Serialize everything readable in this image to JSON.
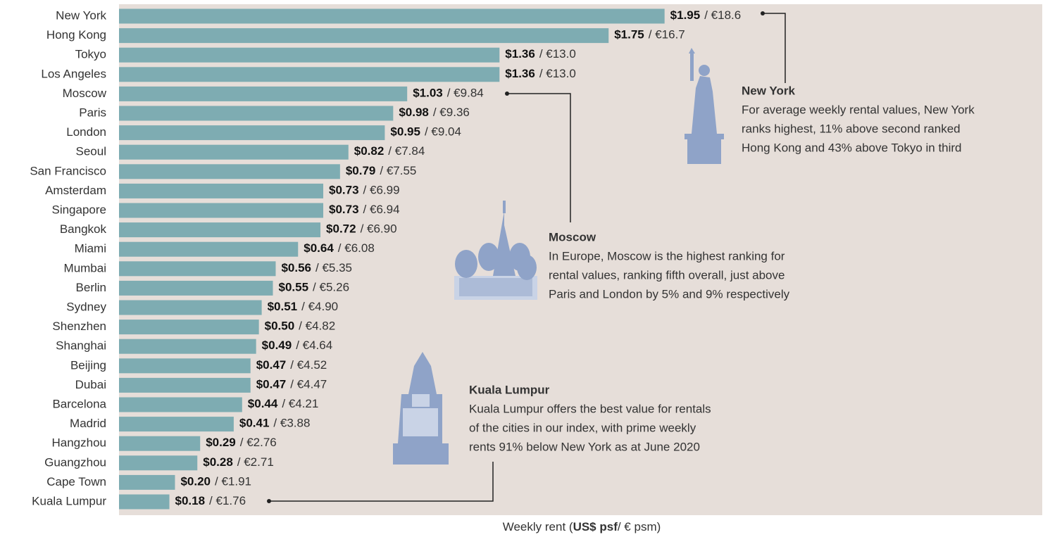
{
  "chart_data": {
    "type": "bar",
    "orientation": "horizontal",
    "categories": [
      "New York",
      "Hong Kong",
      "Tokyo",
      "Los Angeles",
      "Moscow",
      "Paris",
      "London",
      "Seoul",
      "San Francisco",
      "Amsterdam",
      "Singapore",
      "Bangkok",
      "Miami",
      "Mumbai",
      "Berlin",
      "Sydney",
      "Shenzhen",
      "Shanghai",
      "Beijing",
      "Dubai",
      "Barcelona",
      "Madrid",
      "Hangzhou",
      "Guangzhou",
      "Cape Town",
      "Kuala Lumpur"
    ],
    "values": [
      1.95,
      1.75,
      1.36,
      1.36,
      1.03,
      0.98,
      0.95,
      0.82,
      0.79,
      0.73,
      0.73,
      0.72,
      0.64,
      0.56,
      0.55,
      0.51,
      0.5,
      0.49,
      0.47,
      0.47,
      0.44,
      0.41,
      0.29,
      0.28,
      0.2,
      0.18
    ],
    "value_labels": [
      "$1.95",
      "$1.75",
      "$1.36",
      "$1.36",
      "$1.03",
      "$0.98",
      "$0.95",
      "$0.82",
      "$0.79",
      "$0.73",
      "$0.73",
      "$0.72",
      "$0.64",
      "$0.56",
      "$0.55",
      "$0.51",
      "$0.50",
      "$0.49",
      "$0.47",
      "$0.47",
      "$0.44",
      "$0.41",
      "$0.29",
      "$0.28",
      "$0.20",
      "$0.18"
    ],
    "secondary_values": [
      18.6,
      16.7,
      13.0,
      13.0,
      9.84,
      9.36,
      9.04,
      7.84,
      7.55,
      6.99,
      6.94,
      6.9,
      6.08,
      5.35,
      5.26,
      4.9,
      4.82,
      4.64,
      4.52,
      4.47,
      4.21,
      3.88,
      2.76,
      2.71,
      1.91,
      1.76
    ],
    "secondary_value_labels": [
      "/ €18.6",
      "/ €16.7",
      "/ €13.0",
      "/ €13.0",
      "/ €9.84",
      "/ €9.36",
      "/ €9.04",
      "/ €7.84",
      "/ €7.55",
      "/ €6.99",
      "/ €6.94",
      "/ €6.90",
      "/ €6.08",
      "/ €5.35",
      "/ €5.26",
      "/ €4.90",
      "/ €4.82",
      "/ €4.64",
      "/ €4.52",
      "/ €4.47",
      "/ €4.21",
      "/ €3.88",
      "/ €2.76",
      "/ €2.71",
      "/ €1.91",
      "/ €1.76"
    ],
    "color": "#7eacb2",
    "background": "#e6ded9",
    "xlim": [
      0,
      3.3
    ],
    "xlabel": [
      "Weekly rent (",
      "US$ psf",
      "/ € psm)"
    ],
    "annotations": [
      {
        "title": "New York",
        "text": [
          "For average weekly rental values, New York",
          "ranks highest, 11% above second ranked",
          "Hong Kong and 43% above Tokyo in third"
        ]
      },
      {
        "title": "Moscow",
        "text": [
          "In Europe, Moscow is the highest ranking for",
          "rental values, ranking fifth overall, just above",
          "Paris and London by 5% and 9% respectively"
        ]
      },
      {
        "title": "Kuala Lumpur",
        "text": [
          "Kuala Lumpur offers the best value for rentals",
          "of the cities in our index, with prime weekly",
          "rents 91% below New York as at June 2020"
        ]
      }
    ]
  }
}
